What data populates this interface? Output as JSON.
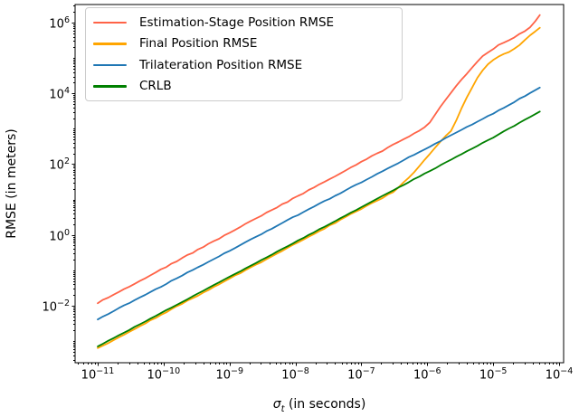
{
  "figure": {
    "background": "#ffffff",
    "spine_color": "#000000",
    "tick_color": "#000000",
    "legend_border_color": "#cccccc"
  },
  "chart_data": {
    "type": "line",
    "x_scale": "log",
    "y_scale": "log",
    "grid": false,
    "legend_position": "upper left",
    "xlabel": {
      "symbol": "σ",
      "subscript": "t",
      "text": " (in seconds)"
    },
    "ylabel": "RMSE (in meters)",
    "x_tick_exponents": [
      -11,
      -10,
      -9,
      -8,
      -7,
      -6,
      -5,
      -4
    ],
    "y_tick_exponents": [
      6,
      4,
      2,
      0,
      -2
    ],
    "xlim_log": [
      -11.343,
      -3.932
    ],
    "ylim_log": [
      -3.612,
      6.512
    ],
    "x_data_range": [
      1e-11,
      5.1e-05
    ],
    "series": [
      {
        "name": "Estimation-Stage Position RMSE",
        "color": "#ff6347",
        "points": [
          [
            1e-11,
            0.012
          ],
          [
            1e-10,
            0.115
          ],
          [
            1e-09,
            1.15
          ],
          [
            1e-08,
            11.5
          ],
          [
            1e-07,
            115
          ],
          [
            5e-07,
            580
          ],
          [
            1e-06,
            1200
          ],
          [
            1.75e-06,
            5600
          ],
          [
            3.3e-06,
            24500
          ],
          [
            6.2e-06,
            95000
          ],
          [
            1.2e-05,
            230000
          ],
          [
            2.2e-05,
            410000
          ],
          [
            3.5e-05,
            700000
          ],
          [
            5.1e-05,
            1600000
          ]
        ]
      },
      {
        "name": "Final Position RMSE",
        "color": "#ffa500",
        "points": [
          [
            1e-11,
            0.00062
          ],
          [
            1e-10,
            0.006
          ],
          [
            1e-09,
            0.058
          ],
          [
            1e-08,
            0.56
          ],
          [
            1e-07,
            5.5
          ],
          [
            3e-07,
            16
          ],
          [
            5.4e-07,
            43
          ],
          [
            1e-06,
            160
          ],
          [
            1.5e-06,
            390
          ],
          [
            2.4e-06,
            960
          ],
          [
            3.3e-06,
            3700
          ],
          [
            4.5e-06,
            12000
          ],
          [
            6.2e-06,
            35000
          ],
          [
            8.5e-06,
            71000
          ],
          [
            1.2e-05,
            107000
          ],
          [
            1.6e-05,
            140000
          ],
          [
            2.2e-05,
            190000
          ],
          [
            3.3e-05,
            380000
          ],
          [
            5.1e-05,
            700000
          ]
        ]
      },
      {
        "name": "Trilateration Position RMSE",
        "color": "#1f77b4",
        "points": [
          [
            1e-11,
            0.0041
          ],
          [
            1e-10,
            0.038
          ],
          [
            1e-09,
            0.36
          ],
          [
            1e-08,
            3.4
          ],
          [
            1e-07,
            31
          ],
          [
            1e-06,
            290
          ],
          [
            1e-05,
            2700
          ],
          [
            5.1e-05,
            14500
          ]
        ]
      },
      {
        "name": "CRLB",
        "color": "#008000",
        "points": [
          [
            1e-11,
            0.0007
          ],
          [
            1e-10,
            0.0068
          ],
          [
            1e-09,
            0.065
          ],
          [
            1e-08,
            0.63
          ],
          [
            1e-07,
            6.1
          ],
          [
            1e-06,
            59
          ],
          [
            1e-05,
            570
          ],
          [
            5.1e-05,
            3100
          ]
        ]
      }
    ]
  }
}
